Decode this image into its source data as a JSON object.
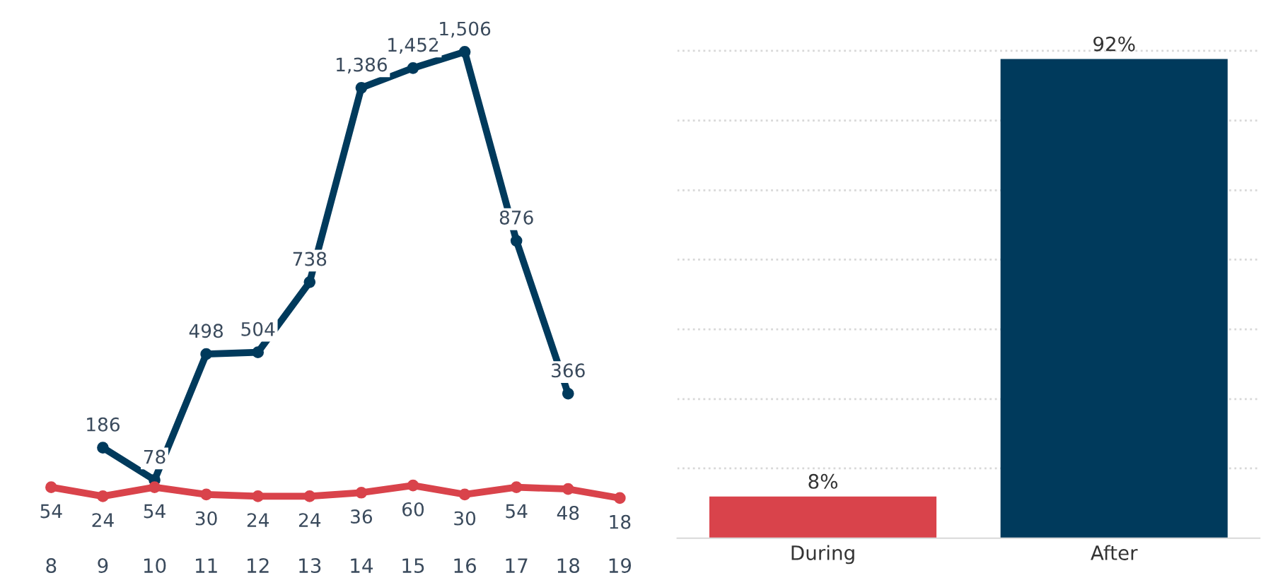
{
  "chart_data": [
    {
      "type": "line",
      "categories": [
        "8",
        "9",
        "10",
        "11",
        "12",
        "13",
        "14",
        "15",
        "16",
        "17",
        "18",
        "19"
      ],
      "series": [
        {
          "color": "#003a5c",
          "values": [
            null,
            186,
            78,
            498,
            504,
            738,
            1386,
            1452,
            1506,
            876,
            366,
            null
          ],
          "value_labels": [
            null,
            "186",
            "78",
            "498",
            "504",
            "738",
            "1,386",
            "1,452",
            "1,506",
            "876",
            "366",
            null
          ]
        },
        {
          "color": "#d9434b",
          "values": [
            54,
            24,
            54,
            30,
            24,
            24,
            36,
            60,
            30,
            54,
            48,
            18
          ],
          "value_labels": [
            "54",
            "24",
            "54",
            "30",
            "24",
            "24",
            "36",
            "60",
            "30",
            "54",
            "48",
            "18"
          ]
        }
      ],
      "marker": "circle",
      "line_style": "solid",
      "grid": false,
      "legend": false
    },
    {
      "type": "bar",
      "categories": [
        "During",
        "After"
      ],
      "values": [
        8,
        92
      ],
      "colors": [
        "#d9434b",
        "#003a5c"
      ],
      "value_labels": [
        "8%",
        "92%"
      ],
      "yticks": [
        {
          "value": 13.4,
          "label": null
        },
        {
          "value": 26.7,
          "label": null
        },
        {
          "value": 40.1,
          "label": null
        },
        {
          "value": 53.5,
          "label": null
        },
        {
          "value": 66.8,
          "label": null
        },
        {
          "value": 80.2,
          "label": null
        },
        {
          "value": 93.6,
          "label": null
        }
      ],
      "grid": "y",
      "legend": false
    }
  ]
}
